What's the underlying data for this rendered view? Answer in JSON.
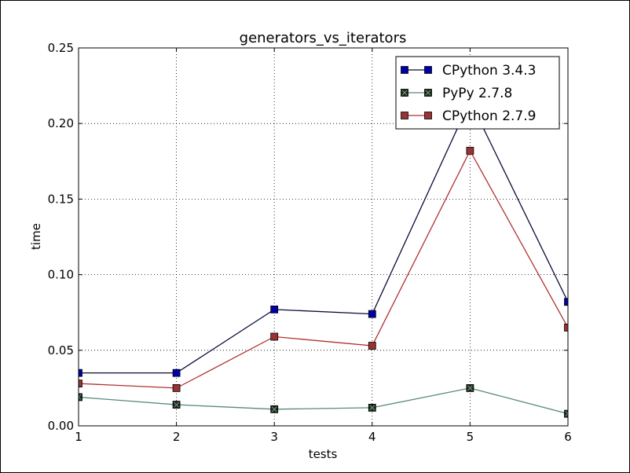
{
  "chart_data": {
    "type": "line",
    "title": "generators_vs_iterators",
    "xlabel": "tests",
    "ylabel": "time",
    "xlim": [
      1,
      6
    ],
    "ylim": [
      0,
      0.25
    ],
    "x": [
      1,
      2,
      3,
      4,
      5,
      6
    ],
    "xticks": [
      "1",
      "2",
      "3",
      "4",
      "5",
      "6"
    ],
    "yticks": [
      "0.00",
      "0.05",
      "0.10",
      "0.15",
      "0.20",
      "0.25"
    ],
    "grid": true,
    "legend_position": "top-right",
    "series": [
      {
        "name": "CPython 3.4.3",
        "color": "#0000aa",
        "line_color": "#0a0a3a",
        "marker": "square",
        "values": [
          0.035,
          0.035,
          0.077,
          0.074,
          0.215,
          0.082
        ]
      },
      {
        "name": "PyPy 2.7.8",
        "color": "#1a2a1a",
        "line_color": "#5a8a7a",
        "marker": "square-x",
        "values": [
          0.019,
          0.014,
          0.011,
          0.012,
          0.025,
          0.008
        ]
      },
      {
        "name": "CPython 2.7.9",
        "color": "#993333",
        "line_color": "#b03030",
        "marker": "square",
        "values": [
          0.028,
          0.025,
          0.059,
          0.053,
          0.182,
          0.065
        ]
      }
    ]
  }
}
